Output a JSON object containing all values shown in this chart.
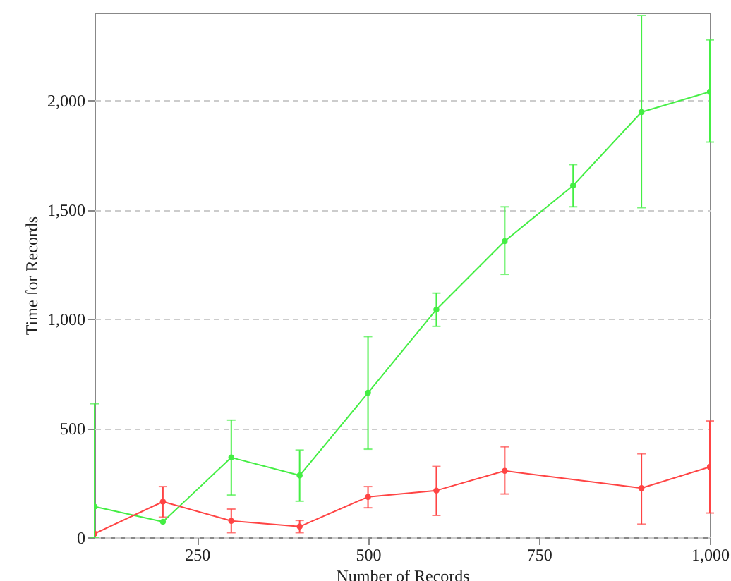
{
  "chart_data": {
    "type": "line",
    "xlabel": "Number of Records",
    "ylabel": "Time for Records",
    "xlim": [
      100,
      1000
    ],
    "xticks": [
      250,
      500,
      750,
      {
        "value": 1000,
        "label": "1,000"
      }
    ],
    "ylim": [
      0,
      2400
    ],
    "yticks": [
      0,
      500,
      {
        "value": 1000,
        "label": "1,000"
      },
      {
        "value": 1500,
        "label": "1,500"
      },
      {
        "value": 2000,
        "label": "2,000"
      }
    ],
    "grid": "y",
    "marker": "circle",
    "line_style": "solid",
    "series": [
      {
        "color": "#44ee44",
        "x": [
          100,
          200,
          300,
          400,
          500,
          600,
          700,
          800,
          900,
          1000
        ],
        "values": [
          140,
          71,
          365,
          283,
          661,
          1042,
          1355,
          1609,
          1945,
          2038
        ],
        "errors": [
          [
            0,
            611
          ],
          null,
          [
            193,
            536
          ],
          [
            165,
            399
          ],
          [
            403,
            918
          ],
          [
            965,
            1117
          ],
          [
            1203,
            1512
          ],
          [
            1512,
            1705
          ],
          [
            1508,
            2387
          ],
          [
            1808,
            2275
          ]
        ]
      },
      {
        "color": "#ff4444",
        "x": [
          100,
          200,
          300,
          400,
          500,
          600,
          700,
          900,
          1000
        ],
        "values": [
          17,
          163,
          75,
          49,
          185,
          214,
          304,
          225,
          322
        ],
        "errors": [
          null,
          [
            92,
            232
          ],
          [
            21,
            129
          ],
          [
            21,
            77
          ],
          [
            135,
            232
          ],
          [
            100,
            324
          ],
          [
            198,
            414
          ],
          [
            60,
            382
          ],
          [
            111,
            532
          ]
        ]
      }
    ]
  }
}
